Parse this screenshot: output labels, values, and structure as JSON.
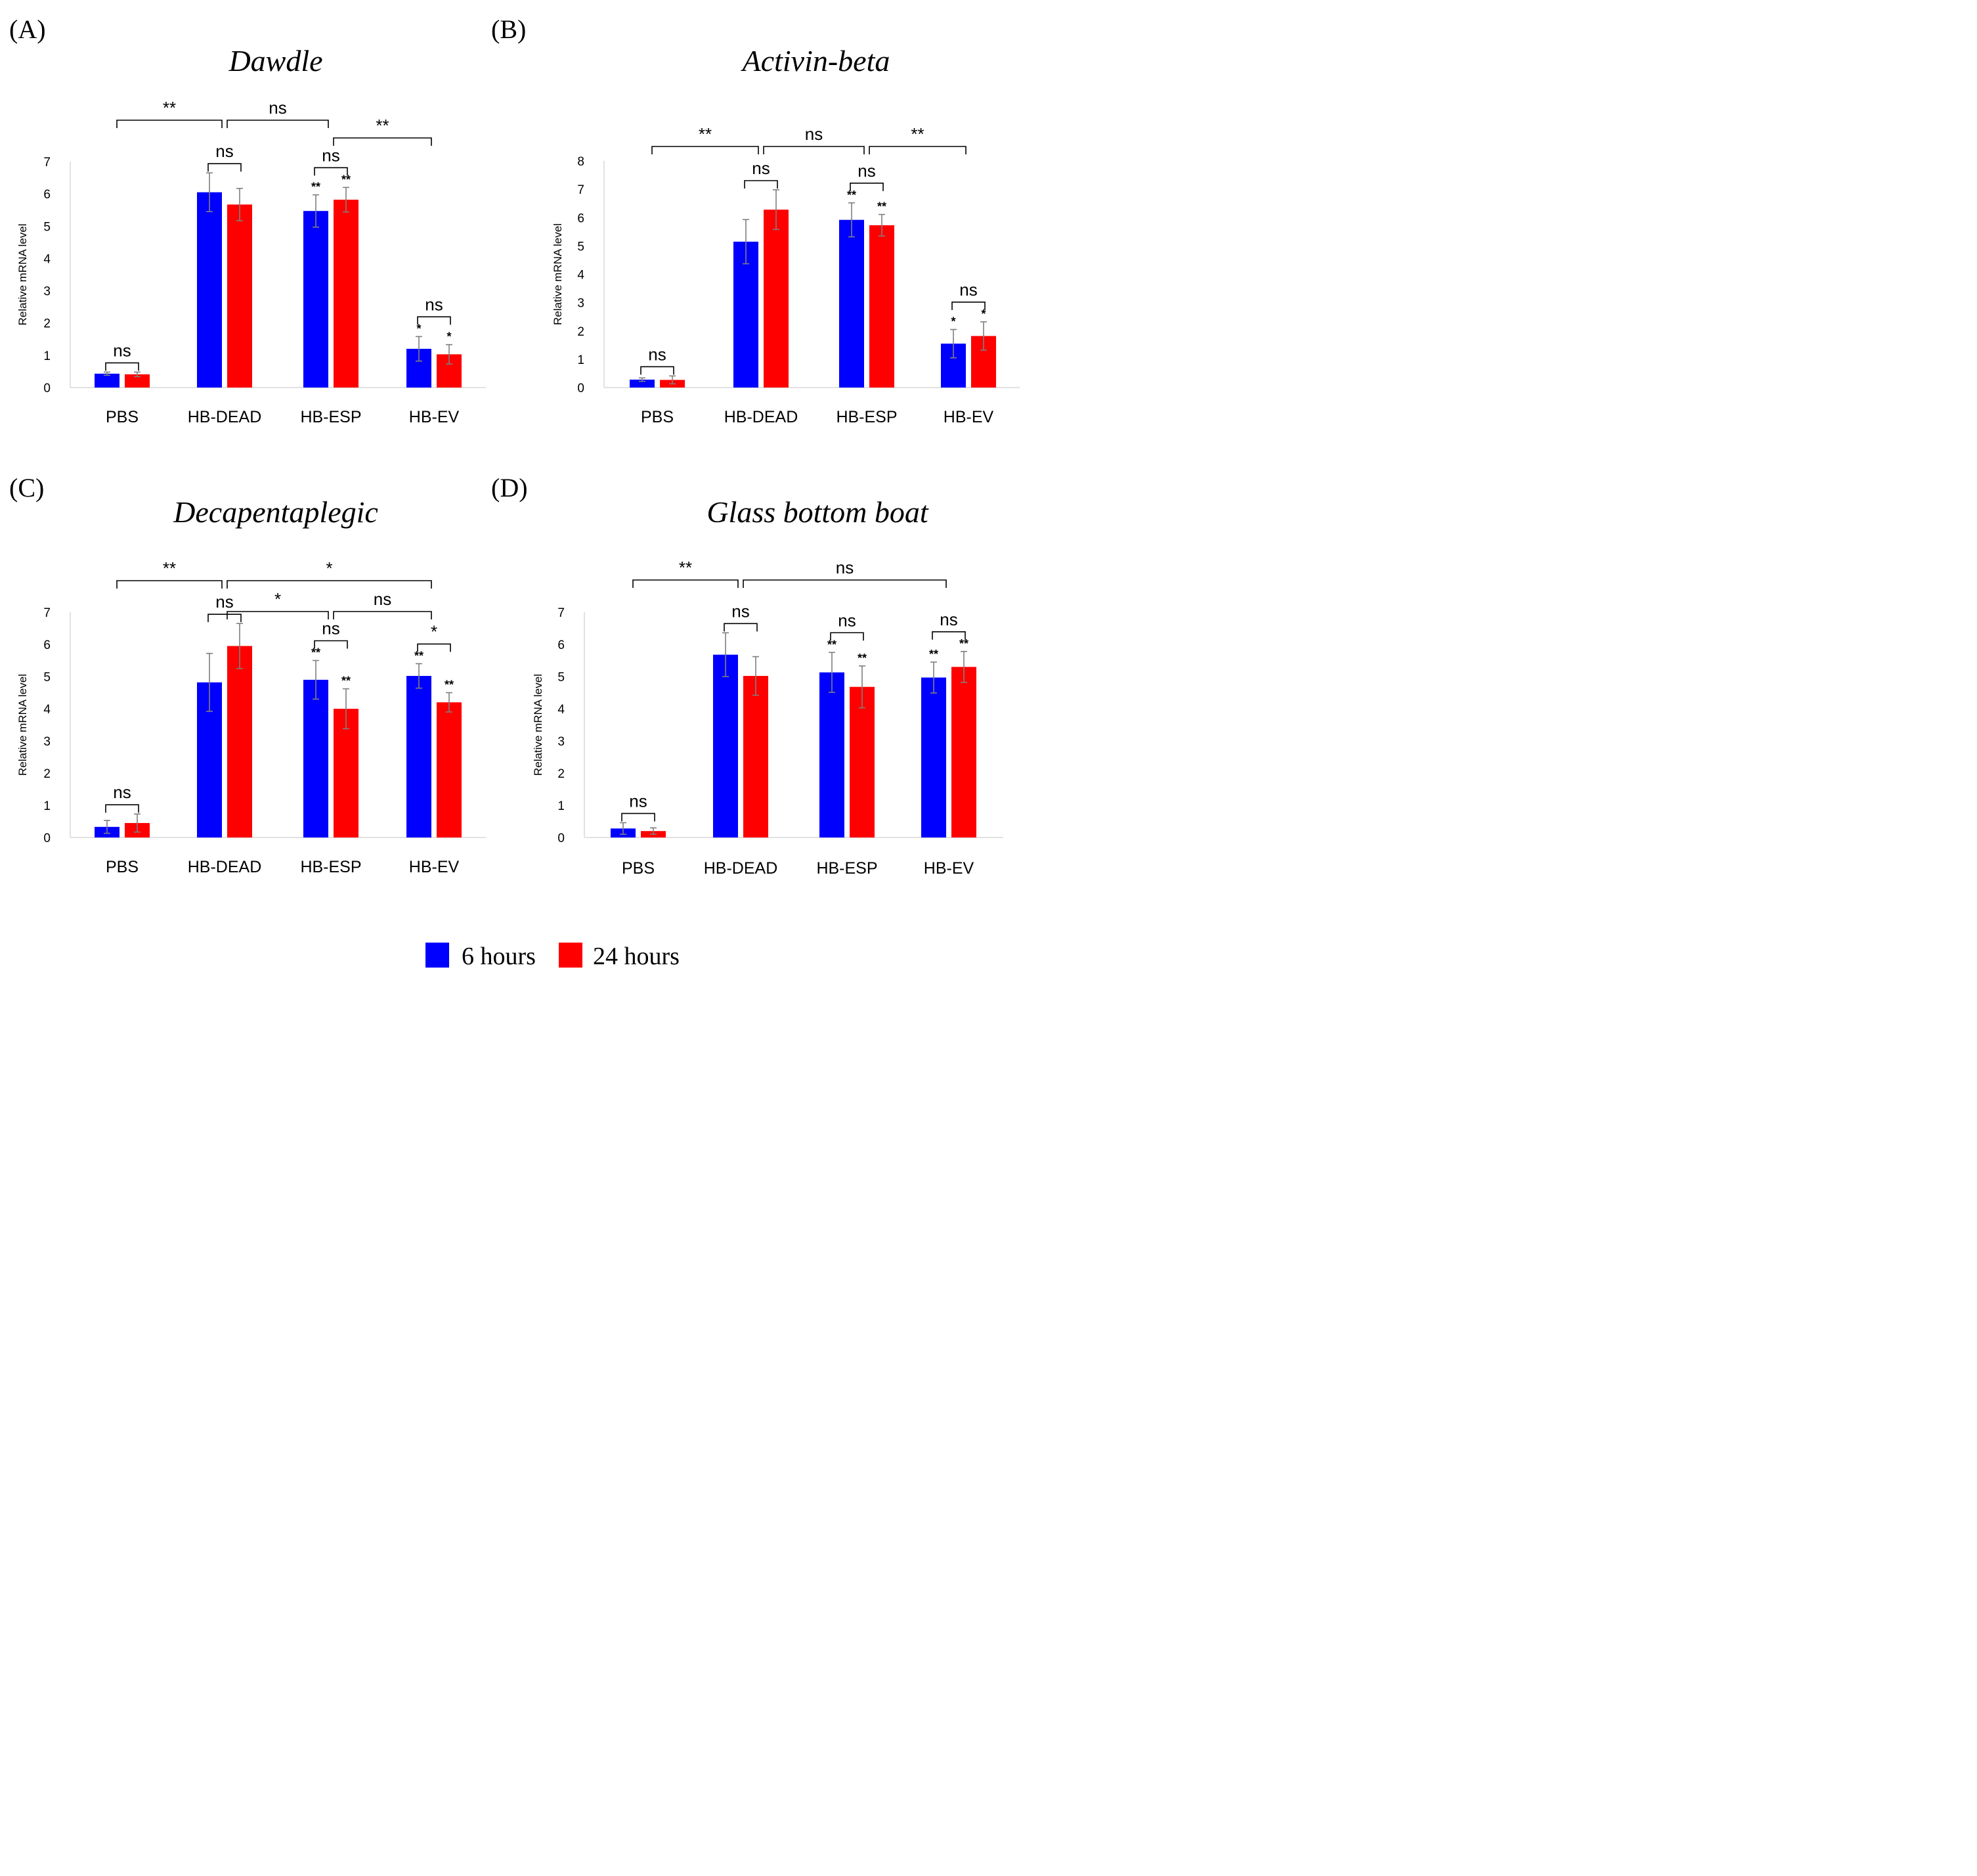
{
  "chart_data": [
    {
      "type": "bar",
      "panel_label": "(A)",
      "title": "Dawdle",
      "ylabel": "Relative mRNA level",
      "ylim": [
        0,
        7
      ],
      "yticks": [
        0,
        1,
        2,
        3,
        4,
        5,
        6,
        7
      ],
      "categories": [
        "PBS",
        "HB-DEAD",
        "HB-ESP",
        "HB-EV"
      ],
      "series": [
        {
          "name": "6 hours",
          "values": [
            0.43,
            6.05,
            5.47,
            1.2
          ],
          "errors": [
            0.05,
            0.6,
            0.5,
            0.38
          ],
          "marks": [
            "",
            "",
            "**",
            "*"
          ]
        },
        {
          "name": "24 hours",
          "values": [
            0.41,
            5.67,
            5.82,
            1.03
          ],
          "errors": [
            0.07,
            0.5,
            0.38,
            0.3
          ],
          "marks": [
            "",
            "",
            "**",
            "*"
          ]
        }
      ],
      "within_group": [
        "ns",
        "ns",
        "ns",
        "ns"
      ],
      "between_groups": [
        {
          "from": 0,
          "to": 1,
          "label": "**",
          "level": 1
        },
        {
          "from": 1,
          "to": 2,
          "label": "ns",
          "level": 1
        },
        {
          "from": 2,
          "to": 3,
          "label": "**",
          "level": 0
        }
      ]
    },
    {
      "type": "bar",
      "panel_label": "(B)",
      "title": "Activin-beta",
      "ylabel": "Relative mRNA level",
      "ylim": [
        0,
        8
      ],
      "yticks": [
        0,
        1,
        2,
        3,
        4,
        5,
        6,
        7,
        8
      ],
      "categories": [
        "PBS",
        "HB-DEAD",
        "HB-ESP",
        "HB-EV"
      ],
      "series": [
        {
          "name": "6 hours",
          "values": [
            0.28,
            5.15,
            5.92,
            1.55
          ],
          "errors": [
            0.06,
            0.78,
            0.6,
            0.5
          ],
          "marks": [
            "",
            "",
            "**",
            "*"
          ]
        },
        {
          "name": "24 hours",
          "values": [
            0.27,
            6.28,
            5.73,
            1.82
          ],
          "errors": [
            0.14,
            0.7,
            0.38,
            0.5
          ],
          "marks": [
            "",
            "",
            "**",
            "*"
          ]
        }
      ],
      "within_group": [
        "ns",
        "ns",
        "ns",
        "ns"
      ],
      "between_groups": [
        {
          "from": 0,
          "to": 1,
          "label": "**",
          "level": 0
        },
        {
          "from": 1,
          "to": 2,
          "label": "ns",
          "level": 0
        },
        {
          "from": 2,
          "to": 3,
          "label": "**",
          "level": 0
        }
      ]
    },
    {
      "type": "bar",
      "panel_label": "(C)",
      "title": "Decapentaplegic",
      "ylabel": "Relative mRNA level",
      "ylim": [
        0,
        7
      ],
      "yticks": [
        0,
        1,
        2,
        3,
        4,
        5,
        6,
        7
      ],
      "categories": [
        "PBS",
        "HB-DEAD",
        "HB-ESP",
        "HB-EV"
      ],
      "series": [
        {
          "name": "6 hours",
          "values": [
            0.33,
            4.82,
            4.9,
            5.02
          ],
          "errors": [
            0.2,
            0.9,
            0.6,
            0.38
          ],
          "marks": [
            "",
            "",
            "**",
            "**"
          ]
        },
        {
          "name": "24 hours",
          "values": [
            0.45,
            5.95,
            4.0,
            4.2
          ],
          "errors": [
            0.28,
            0.7,
            0.62,
            0.3
          ],
          "marks": [
            "",
            "",
            "**",
            "**"
          ]
        }
      ],
      "within_group": [
        "ns",
        "ns",
        "ns",
        "*"
      ],
      "between_groups": [
        {
          "from": 0,
          "to": 1,
          "label": "**",
          "level": 1
        },
        {
          "from": 1,
          "to": 3,
          "label": "*",
          "level": 1
        },
        {
          "from": 1,
          "to": 2,
          "label": "*",
          "level": 0
        },
        {
          "from": 2,
          "to": 3,
          "label": "ns",
          "level": 0
        }
      ]
    },
    {
      "type": "bar",
      "panel_label": "(D)",
      "title": "Glass bottom boat",
      "ylabel": "Relative mRNA level",
      "ylim": [
        0,
        7
      ],
      "yticks": [
        0,
        1,
        2,
        3,
        4,
        5,
        6,
        7
      ],
      "categories": [
        "PBS",
        "HB-DEAD",
        "HB-ESP",
        "HB-EV"
      ],
      "series": [
        {
          "name": "6 hours",
          "values": [
            0.28,
            5.68,
            5.13,
            4.97
          ],
          "errors": [
            0.18,
            0.68,
            0.62,
            0.48
          ],
          "marks": [
            "",
            "",
            "**",
            "**"
          ]
        },
        {
          "name": "24 hours",
          "values": [
            0.2,
            5.02,
            4.68,
            5.3
          ],
          "errors": [
            0.1,
            0.6,
            0.65,
            0.48
          ],
          "marks": [
            "",
            "",
            "**",
            "**"
          ]
        }
      ],
      "within_group": [
        "ns",
        "ns",
        "ns",
        "ns"
      ],
      "between_groups": [
        {
          "from": 0,
          "to": 1,
          "label": "**",
          "level": 0
        },
        {
          "from": 1,
          "to": 3,
          "label": "ns",
          "level": 0
        }
      ]
    }
  ],
  "legend": {
    "items": [
      {
        "label": "6 hours",
        "color": "#0000ff"
      },
      {
        "label": "24 hours",
        "color": "#ff0000"
      }
    ]
  },
  "colors": {
    "series": [
      "#0000ff",
      "#ff0000"
    ],
    "error_bar": "#7f7f7f",
    "axis": "#d9d9d9"
  }
}
